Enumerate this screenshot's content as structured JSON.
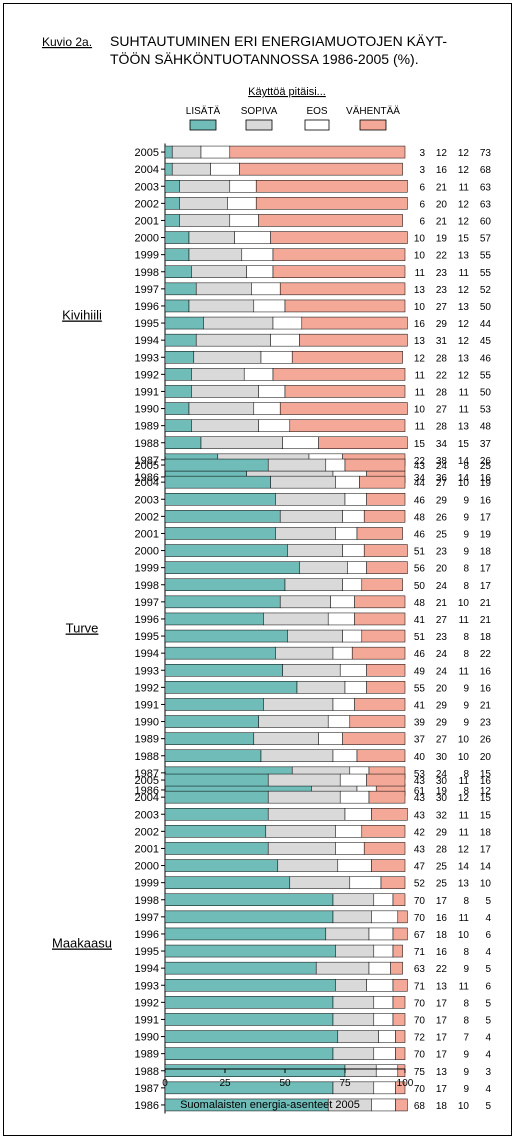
{
  "header": {
    "figure_label": "Kuvio 2a.",
    "title_line1": "SUHTAUTUMINEN ERI ENERGIAMUOTOJEN KÄYT-",
    "title_line2": "TÖÖN SÄHKÖNTUOTANNOSSA 1986-2005 (%)."
  },
  "legend": {
    "title": "Käyttöä pitäisi...",
    "placement": "top"
  },
  "footer": {
    "source": "Suomalaisten energia-asenteet 2005"
  },
  "colors": {
    "lisata": "#6fbcb8",
    "sopiva": "#d9d9d9",
    "eos": "#ffffff",
    "vahentaa": "#f4a898"
  },
  "chart_data": {
    "type": "bar",
    "orientation": "horizontal",
    "stacked": true,
    "xlim": [
      0,
      100
    ],
    "x_ticks": [
      "0",
      "25",
      "50",
      "75",
      "100"
    ],
    "series": [
      {
        "name": "LISÄTÄ",
        "color": "#6fbcb8"
      },
      {
        "name": "SOPIVA",
        "color": "#d9d9d9"
      },
      {
        "name": "EOS",
        "color": "#ffffff"
      },
      {
        "name": "VÄHENTÄÄ",
        "color": "#f4a898"
      }
    ],
    "groups": [
      {
        "label": "Kivihiili",
        "rows": [
          {
            "year": "2005",
            "values": [
              3,
              12,
              12,
              73
            ]
          },
          {
            "year": "2004",
            "values": [
              3,
              16,
              12,
              68
            ]
          },
          {
            "year": "2003",
            "values": [
              6,
              21,
              11,
              63
            ]
          },
          {
            "year": "2002",
            "values": [
              6,
              20,
              12,
              63
            ]
          },
          {
            "year": "2001",
            "values": [
              6,
              21,
              12,
              60
            ]
          },
          {
            "year": "2000",
            "values": [
              10,
              19,
              15,
              57
            ]
          },
          {
            "year": "1999",
            "values": [
              10,
              22,
              13,
              55
            ]
          },
          {
            "year": "1998",
            "values": [
              11,
              23,
              11,
              55
            ]
          },
          {
            "year": "1997",
            "values": [
              13,
              23,
              12,
              52
            ]
          },
          {
            "year": "1996",
            "values": [
              10,
              27,
              13,
              50
            ]
          },
          {
            "year": "1995",
            "values": [
              16,
              29,
              12,
              44
            ]
          },
          {
            "year": "1994",
            "values": [
              13,
              31,
              12,
              45
            ]
          },
          {
            "year": "1993",
            "values": [
              12,
              28,
              13,
              46
            ]
          },
          {
            "year": "1992",
            "values": [
              11,
              22,
              12,
              55
            ]
          },
          {
            "year": "1991",
            "values": [
              11,
              28,
              11,
              50
            ]
          },
          {
            "year": "1990",
            "values": [
              10,
              27,
              11,
              53
            ]
          },
          {
            "year": "1989",
            "values": [
              11,
              28,
              13,
              48
            ]
          },
          {
            "year": "1988",
            "values": [
              15,
              34,
              15,
              37
            ]
          },
          {
            "year": "1987",
            "values": [
              22,
              38,
              14,
              26
            ]
          },
          {
            "year": "1986",
            "values": [
              34,
              36,
              14,
              16
            ]
          }
        ]
      },
      {
        "label": "Turve",
        "rows": [
          {
            "year": "2005",
            "values": [
              43,
              24,
              8,
              25
            ]
          },
          {
            "year": "2004",
            "values": [
              44,
              27,
              10,
              19
            ]
          },
          {
            "year": "2003",
            "values": [
              46,
              29,
              9,
              16
            ]
          },
          {
            "year": "2002",
            "values": [
              48,
              26,
              9,
              17
            ]
          },
          {
            "year": "2001",
            "values": [
              46,
              25,
              9,
              19
            ]
          },
          {
            "year": "2000",
            "values": [
              51,
              23,
              9,
              18
            ]
          },
          {
            "year": "1999",
            "values": [
              56,
              20,
              8,
              17
            ]
          },
          {
            "year": "1998",
            "values": [
              50,
              24,
              8,
              17
            ]
          },
          {
            "year": "1997",
            "values": [
              48,
              21,
              10,
              21
            ]
          },
          {
            "year": "1996",
            "values": [
              41,
              27,
              11,
              21
            ]
          },
          {
            "year": "1995",
            "values": [
              51,
              23,
              8,
              18
            ]
          },
          {
            "year": "1994",
            "values": [
              46,
              24,
              8,
              22
            ]
          },
          {
            "year": "1993",
            "values": [
              49,
              24,
              11,
              16
            ]
          },
          {
            "year": "1992",
            "values": [
              55,
              20,
              9,
              16
            ]
          },
          {
            "year": "1991",
            "values": [
              41,
              29,
              9,
              21
            ]
          },
          {
            "year": "1990",
            "values": [
              39,
              29,
              9,
              23
            ]
          },
          {
            "year": "1989",
            "values": [
              37,
              27,
              10,
              26
            ]
          },
          {
            "year": "1988",
            "values": [
              40,
              30,
              10,
              20
            ]
          },
          {
            "year": "1987",
            "values": [
              53,
              24,
              8,
              15
            ]
          },
          {
            "year": "1986",
            "values": [
              61,
              19,
              8,
              12
            ]
          }
        ]
      },
      {
        "label": "Maakaasu",
        "rows": [
          {
            "year": "2005",
            "values": [
              43,
              30,
              11,
              16
            ]
          },
          {
            "year": "2004",
            "values": [
              43,
              30,
              12,
              15
            ]
          },
          {
            "year": "2003",
            "values": [
              43,
              32,
              11,
              15
            ]
          },
          {
            "year": "2002",
            "values": [
              42,
              29,
              11,
              18
            ]
          },
          {
            "year": "2001",
            "values": [
              43,
              28,
              12,
              17
            ]
          },
          {
            "year": "2000",
            "values": [
              47,
              25,
              14,
              14
            ]
          },
          {
            "year": "1999",
            "values": [
              52,
              25,
              13,
              10
            ]
          },
          {
            "year": "1998",
            "values": [
              70,
              17,
              8,
              5
            ]
          },
          {
            "year": "1997",
            "values": [
              70,
              16,
              11,
              4
            ]
          },
          {
            "year": "1996",
            "values": [
              67,
              18,
              10,
              6
            ]
          },
          {
            "year": "1995",
            "values": [
              71,
              16,
              8,
              4
            ]
          },
          {
            "year": "1994",
            "values": [
              63,
              22,
              9,
              5
            ]
          },
          {
            "year": "1993",
            "values": [
              71,
              13,
              11,
              6
            ]
          },
          {
            "year": "1992",
            "values": [
              70,
              17,
              8,
              5
            ]
          },
          {
            "year": "1991",
            "values": [
              70,
              17,
              8,
              5
            ]
          },
          {
            "year": "1990",
            "values": [
              72,
              17,
              7,
              4
            ]
          },
          {
            "year": "1989",
            "values": [
              70,
              17,
              9,
              4
            ]
          },
          {
            "year": "1988",
            "values": [
              75,
              13,
              9,
              3
            ]
          },
          {
            "year": "1987",
            "values": [
              70,
              17,
              9,
              4
            ]
          },
          {
            "year": "1986",
            "values": [
              68,
              18,
              10,
              5
            ]
          }
        ]
      }
    ]
  }
}
